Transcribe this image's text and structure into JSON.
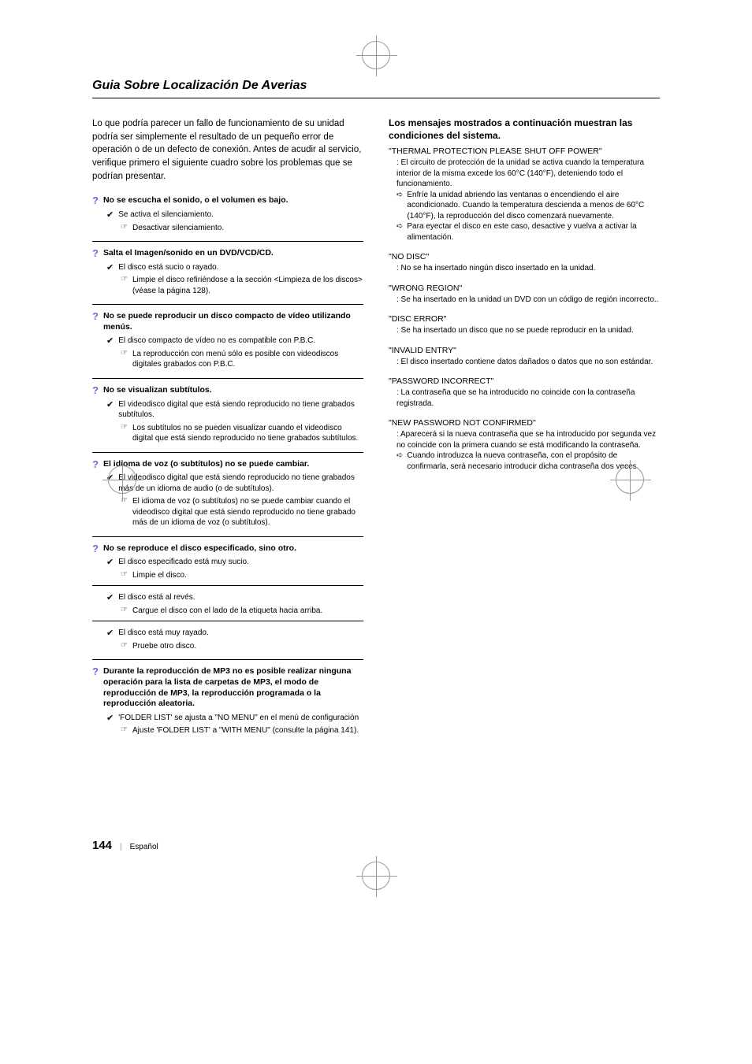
{
  "title": "Guia Sobre Localización De Averias",
  "intro": "Lo que podría parecer un fallo de funcionamiento de su unidad podría ser simplemente el resultado de un pequeño error de operación o de un defecto de conexión. Antes de acudir al servicio, verifique primero el siguiente cuadro sobre los problemas que se podrían presentar.",
  "questions": [
    {
      "q": "No se escucha el sonido, o el volumen es bajo.",
      "checks": [
        {
          "text": "Se activa el silenciamiento.",
          "pointers": [
            "Desactivar silenciamiento."
          ]
        }
      ],
      "divider": true
    },
    {
      "q": "Salta el Imagen/sonido en un DVD/VCD/CD.",
      "checks": [
        {
          "text": "El disco está sucio o rayado.",
          "pointers": [
            "Limpie el disco refiriéndose a la sección <Limpieza de los discos> (véase la página 128)."
          ]
        }
      ],
      "divider": true
    },
    {
      "q": "No se puede reproducir un disco compacto de vídeo utilizando menús.",
      "checks": [
        {
          "text": "El disco compacto de vídeo no es compatible con P.B.C.",
          "pointers": [
            "La reproducción con menú sólo es posible con videodiscos digitales grabados con P.B.C."
          ]
        }
      ],
      "divider": true
    },
    {
      "q": "No se visualizan subtítulos.",
      "checks": [
        {
          "text": "El videodisco digital que está siendo reproducido no tiene grabados subtítulos.",
          "pointers": [
            "Los subtítulos no se pueden visualizar cuando el videodisco digital que está siendo reproducido no tiene grabados subtítulos."
          ]
        }
      ],
      "divider": true
    },
    {
      "q": "El idioma de voz (o subtítulos) no se puede cambiar.",
      "checks": [
        {
          "text": "El videodisco digital que está siendo reproducido no tiene grabados más de un idioma de audio (o de subtítulos).",
          "pointers": [
            "El idioma de voz (o subtítulos) no se puede cambiar cuando el videodisco digital que está siendo reproducido no tiene grabado más de un idioma de voz (o subtítulos)."
          ]
        }
      ],
      "divider": true
    },
    {
      "q": "No se reproduce el disco especificado, sino otro.",
      "checks": [
        {
          "text": "El disco especificado está muy sucio.",
          "pointers": [
            "Limpie el disco."
          ],
          "divider_after": true
        },
        {
          "text": "El disco está al revés.",
          "pointers": [
            "Cargue el disco con el lado de la etiqueta hacia arriba."
          ],
          "divider_after": true
        },
        {
          "text": "El disco está muy rayado.",
          "pointers": [
            "Pruebe otro disco."
          ]
        }
      ],
      "divider": true
    },
    {
      "q": "Durante la reproducción de MP3 no es posible realizar ninguna operación para la lista de carpetas de MP3, el modo de reproducción de MP3, la reproducción programada o la reproducción aleatoria.",
      "checks": [
        {
          "text": "'FOLDER LIST' se ajusta a \"NO MENU\" en el menú de configuración",
          "pointers": [
            "Ajuste 'FOLDER LIST' a \"WITH MENU\" (consulte la página 141)."
          ]
        }
      ],
      "divider": false
    }
  ],
  "right_heading": "Los mensajes mostrados a continuación muestran las condiciones del sistema.",
  "messages": [
    {
      "title": "\"THERMAL PROTECTION PLEASE SHUT OFF POWER\"",
      "desc": ": El circuito de protección de la unidad se activa cuando la temperatura interior de la misma excede los 60°C (140°F), deteniendo todo el funcionamiento.",
      "subs": [
        "Enfríe la unidad abriendo las ventanas o encendiendo el aire acondicionado. Cuando la temperatura descienda a menos de 60°C (140°F), la reproducción del disco comenzará nuevamente.",
        "Para eyectar el disco en este caso, desactive y vuelva a activar la alimentación."
      ]
    },
    {
      "title": "\"NO DISC\"",
      "desc": ": No se ha insertado ningún disco insertado en la unidad."
    },
    {
      "title": "\"WRONG REGION\"",
      "desc": ": Se ha insertado en la unidad un DVD con un código de región incorrecto.."
    },
    {
      "title": "\"DISC ERROR\"",
      "desc": ": Se ha insertado un disco que no se puede reproducir en la unidad."
    },
    {
      "title": "\"INVALID ENTRY\"",
      "desc": ": El disco insertado contiene datos dañados o datos que no son estándar."
    },
    {
      "title": "\"PASSWORD INCORRECT\"",
      "desc": ": La contraseña que se ha introducido no coincide con la contraseña registrada."
    },
    {
      "title": "\"NEW PASSWORD NOT CONFIRMED\"",
      "desc": ": Aparecerá si la nueva contraseña que se ha introducido por segunda vez no coincide con la primera cuando se está modificando la contraseña.",
      "subs": [
        "Cuando introduzca la nueva contraseña, con el propósito de confirmarla, será necesario introducir dicha contraseña dos veces."
      ]
    }
  ],
  "footer": {
    "pagenum": "144",
    "lang": "Español"
  },
  "colors": {
    "q_mark": "#6b6bd6",
    "text": "#000000",
    "background": "#ffffff"
  }
}
